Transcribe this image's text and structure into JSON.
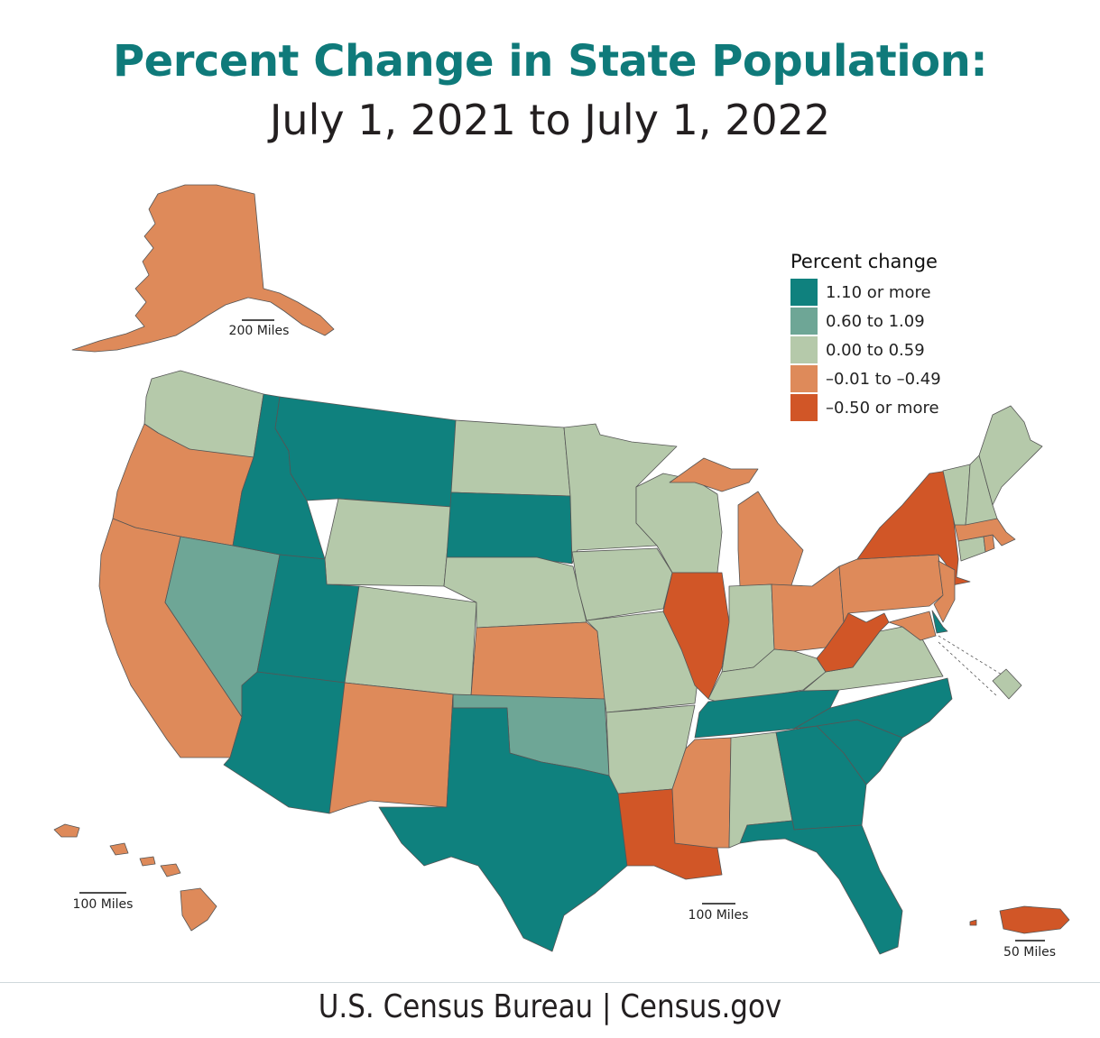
{
  "title": "Percent Change in State Population:",
  "subtitle": "July 1, 2021 to July 1, 2022",
  "legend": {
    "title": "Percent change",
    "items": [
      {
        "label": "1.10 or more",
        "color": "#0f817e"
      },
      {
        "label": "0.60 to 1.09",
        "color": "#6ea696"
      },
      {
        "label": "0.00 to 0.59",
        "color": "#b5c9aa"
      },
      {
        "label": "–0.01 to –0.49",
        "color": "#de8a5a"
      },
      {
        "label": "–0.50 or more",
        "color": "#d15627"
      }
    ]
  },
  "scales": {
    "alaska": "200 Miles",
    "hawaii": "100 Miles",
    "mainland": "100 Miles",
    "puerto_rico": "50 Miles"
  },
  "footer": "U.S. Census Bureau | Census.gov",
  "states": {
    "WA": 2,
    "OR": 3,
    "CA": 3,
    "NV": 1,
    "ID": 0,
    "MT": 0,
    "WY": 2,
    "UT": 0,
    "AZ": 0,
    "CO": 2,
    "NM": 3,
    "ND": 2,
    "SD": 0,
    "NE": 2,
    "KS": 3,
    "OK": 1,
    "TX": 0,
    "MN": 2,
    "IA": 2,
    "MO": 2,
    "AR": 2,
    "LA": 4,
    "WI": 2,
    "IL": 4,
    "MI": 3,
    "IN": 2,
    "OH": 3,
    "KY": 2,
    "TN": 0,
    "MS": 3,
    "AL": 2,
    "GA": 0,
    "FL": 0,
    "SC": 0,
    "NC": 0,
    "VA": 2,
    "WV": 4,
    "PA": 3,
    "NY": 4,
    "NJ": 3,
    "DE": 0,
    "MD": 3,
    "DC": 2,
    "CT": 2,
    "RI": 3,
    "MA": 3,
    "VT": 2,
    "NH": 2,
    "ME": 2,
    "AK": 3,
    "HI": 3,
    "PR": 4
  }
}
